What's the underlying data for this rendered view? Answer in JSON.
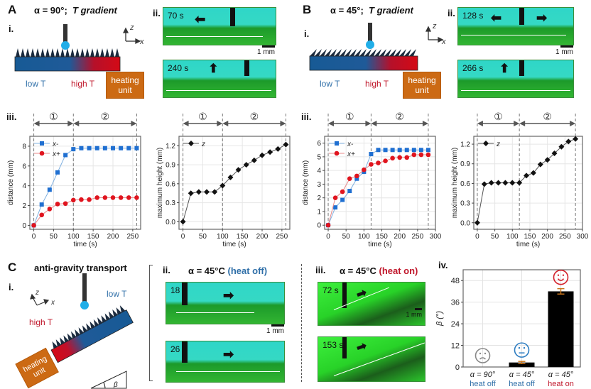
{
  "panelA": {
    "letter": "A",
    "title_alpha": "α = 90°;",
    "title_T": "T gradient",
    "sub_i": "i.",
    "sub_ii": "ii.",
    "sub_iii": "iii.",
    "low_T": "low T",
    "high_T": "high T",
    "heating_unit": "heating unit",
    "axis_z": "z",
    "axis_x": "x",
    "photos": [
      {
        "time": "70 s",
        "arrow": "left"
      },
      {
        "time": "240 s",
        "arrow": "up"
      }
    ],
    "scale_bar": "1 mm"
  },
  "panelB": {
    "letter": "B",
    "title_alpha": "α = 45°;",
    "title_T": "T gradient",
    "sub_i": "i.",
    "sub_ii": "ii.",
    "sub_iii": "iii.",
    "low_T": "low T",
    "high_T": "high T",
    "heating_unit": "heating unit",
    "axis_z": "z",
    "axis_x": "x",
    "photos": [
      {
        "time": "128 s",
        "arrow": "left-right"
      },
      {
        "time": "266 s",
        "arrow": "up"
      }
    ],
    "scale_bar": "1 mm"
  },
  "panelC": {
    "letter": "C",
    "title": "anti-gravity transport",
    "sub_i": "i.",
    "sub_ii": "ii.",
    "sub_iii": "iii.",
    "sub_iv": "iv.",
    "low_T": "low T",
    "high_T": "high T",
    "heating_unit": "heating unit",
    "axis_z": "z",
    "axis_x": "x",
    "beta": "β",
    "ii_title": "α = 45°C",
    "ii_tag": "(heat off)",
    "iii_title": "α = 45°C",
    "iii_tag": "(heat on)",
    "ii_photos": [
      {
        "time": "18 s"
      },
      {
        "time": "26 s"
      }
    ],
    "iii_photos": [
      {
        "time": "72 s"
      },
      {
        "time": "153 s"
      }
    ],
    "scale_bar": "1 mm"
  },
  "colors": {
    "blue_series": "#1f6fd1",
    "red_series": "#e0141e",
    "black_series": "#111111",
    "bar": "#000000",
    "error": "#c8741a",
    "sad": "#888888",
    "neutral": "#2f7ec2",
    "happy": "#d4202a"
  },
  "chart_data": [
    {
      "id": "A-iii-distance",
      "type": "line",
      "xlabel": "time (s)",
      "ylabel": "distance (mm)",
      "xlim": [
        -10,
        270
      ],
      "ylim": [
        -0.4,
        9
      ],
      "xticks": [
        0,
        50,
        100,
        150,
        200,
        250
      ],
      "yticks": [
        0,
        2,
        4,
        6,
        8
      ],
      "phase_lines": [
        0,
        100,
        260
      ],
      "phase_labels": [
        "①",
        "②"
      ],
      "legend": "top-left",
      "x": [
        0,
        20,
        40,
        60,
        80,
        100,
        120,
        140,
        160,
        180,
        200,
        220,
        240,
        260
      ],
      "series": [
        {
          "name": "x-",
          "marker": "square",
          "values": [
            0,
            2.1,
            3.6,
            5.35,
            7.1,
            7.7,
            7.8,
            7.8,
            7.8,
            7.8,
            7.8,
            7.8,
            7.8,
            7.8
          ]
        },
        {
          "name": "x+",
          "marker": "circle",
          "values": [
            0,
            1.05,
            1.65,
            2.15,
            2.2,
            2.55,
            2.6,
            2.6,
            2.8,
            2.8,
            2.8,
            2.8,
            2.8,
            2.8
          ]
        }
      ]
    },
    {
      "id": "A-iii-height",
      "type": "line",
      "xlabel": "time (s)",
      "ylabel": "maximum height (mm)",
      "xlim": [
        -10,
        270
      ],
      "ylim": [
        -0.12,
        1.35
      ],
      "xticks": [
        0,
        50,
        100,
        150,
        200,
        250
      ],
      "yticks": [
        0.0,
        0.3,
        0.6,
        0.9,
        1.2
      ],
      "ytick_labels": [
        "0.0",
        "0.3",
        "0.6",
        "0.9",
        "1.2"
      ],
      "phase_lines": [
        0,
        100,
        260
      ],
      "phase_labels": [
        "①",
        "②"
      ],
      "legend": "top-left",
      "x": [
        0,
        20,
        40,
        60,
        80,
        100,
        120,
        140,
        160,
        180,
        200,
        220,
        240,
        260
      ],
      "series": [
        {
          "name": "z",
          "marker": "diamond",
          "values": [
            0,
            0.45,
            0.47,
            0.47,
            0.47,
            0.57,
            0.7,
            0.82,
            0.9,
            0.97,
            1.05,
            1.1,
            1.15,
            1.22
          ]
        }
      ]
    },
    {
      "id": "B-iii-distance",
      "type": "line",
      "xlabel": "time (s)",
      "ylabel": "distance (mm)",
      "xlim": [
        -10,
        300
      ],
      "ylim": [
        -0.3,
        6.5
      ],
      "xticks": [
        0,
        50,
        100,
        150,
        200,
        250,
        300
      ],
      "yticks": [
        0,
        1,
        2,
        3,
        4,
        5,
        6
      ],
      "phase_lines": [
        0,
        120,
        280
      ],
      "phase_labels": [
        "①",
        "②"
      ],
      "legend": "top-left",
      "x": [
        0,
        20,
        40,
        60,
        80,
        100,
        120,
        140,
        160,
        180,
        200,
        220,
        240,
        260,
        280
      ],
      "series": [
        {
          "name": "x-",
          "marker": "square",
          "values": [
            0,
            1.3,
            1.85,
            2.5,
            3.4,
            3.9,
            5.2,
            5.5,
            5.5,
            5.5,
            5.5,
            5.5,
            5.5,
            5.5,
            5.5
          ]
        },
        {
          "name": "x+",
          "marker": "circle",
          "values": [
            0,
            2.0,
            2.45,
            3.4,
            3.6,
            4.05,
            4.45,
            4.55,
            4.7,
            4.9,
            4.95,
            4.95,
            5.15,
            5.15,
            5.15
          ]
        }
      ]
    },
    {
      "id": "B-iii-height",
      "type": "line",
      "xlabel": "time (s)",
      "ylabel": "maximum height (mm)",
      "xlim": [
        -10,
        300
      ],
      "ylim": [
        -0.1,
        1.32
      ],
      "xticks": [
        0,
        50,
        100,
        150,
        200,
        250,
        300
      ],
      "yticks": [
        0.0,
        0.3,
        0.6,
        0.9,
        1.2
      ],
      "ytick_labels": [
        "0.0",
        "0.3",
        "0.6",
        "0.9",
        "1.2"
      ],
      "phase_lines": [
        0,
        120,
        280
      ],
      "phase_labels": [
        "①",
        "②"
      ],
      "legend": "top-left",
      "x": [
        0,
        20,
        40,
        60,
        80,
        100,
        120,
        140,
        160,
        180,
        200,
        220,
        240,
        260,
        280
      ],
      "series": [
        {
          "name": "z",
          "marker": "diamond",
          "values": [
            0,
            0.59,
            0.61,
            0.61,
            0.61,
            0.61,
            0.61,
            0.72,
            0.76,
            0.89,
            0.96,
            1.06,
            1.16,
            1.24,
            1.28
          ]
        }
      ]
    },
    {
      "id": "C-iv-beta",
      "type": "bar",
      "ylabel": "β (°)",
      "ylim": [
        0,
        54
      ],
      "yticks": [
        0,
        12,
        24,
        36,
        48
      ],
      "categories": [
        {
          "line1": "α = 90°",
          "line2": "heat off",
          "line2_color": "#2f6fa8",
          "face": "sad"
        },
        {
          "line1": "α = 45°",
          "line2": "heat off",
          "line2_color": "#2f6fa8",
          "face": "neutral"
        },
        {
          "line1": "α = 45°",
          "line2": "heat on",
          "line2_color": "#c0172b",
          "face": "happy"
        }
      ],
      "values": [
        0,
        2.5,
        42
      ],
      "errors": [
        0,
        0.6,
        1.5
      ]
    }
  ]
}
